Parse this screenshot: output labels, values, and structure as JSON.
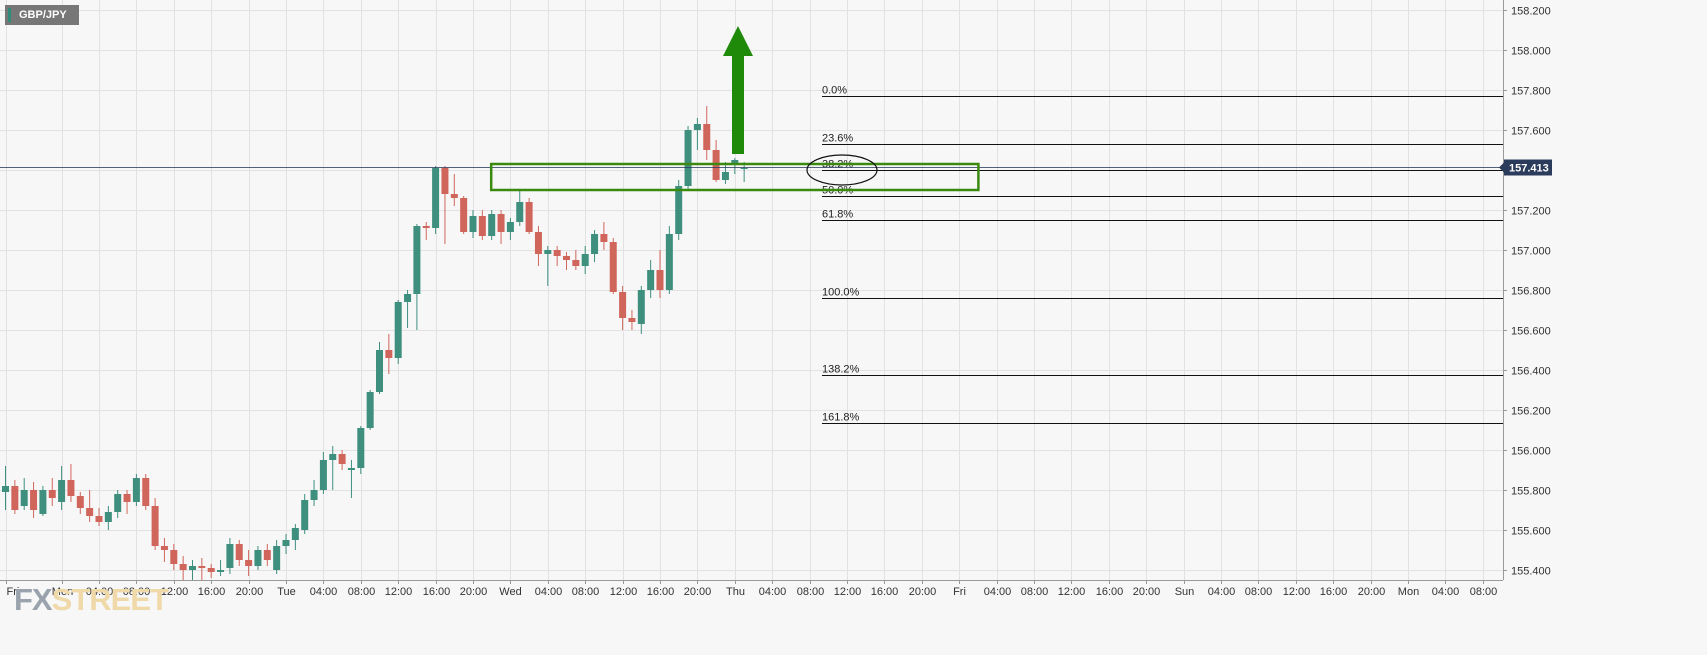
{
  "symbol": "GBP/JPY",
  "watermark": {
    "fx": "FX",
    "street": "STREET"
  },
  "colors": {
    "bull": "#3f8f7f",
    "bear": "#d0665b",
    "grid": "#e2e2e2",
    "fib_line": "#111111",
    "zone": "#3a8a0f",
    "arrow": "#1f8a0a",
    "price_label_bg": "#2b3b5c",
    "price_line": "#2b3b5c"
  },
  "chart_data": {
    "type": "candlestick",
    "title": "GBP/JPY",
    "ylim": [
      155.35,
      158.25
    ],
    "y_ticks": [
      "155.400",
      "155.600",
      "155.800",
      "156.000",
      "156.200",
      "156.400",
      "156.600",
      "156.800",
      "157.000",
      "157.200",
      "157.400",
      "157.600",
      "157.800",
      "158.000",
      "158.200"
    ],
    "x_ticks": [
      "Fri",
      "Mon",
      "04:00",
      "08:00",
      "12:00",
      "16:00",
      "20:00",
      "Tue",
      "04:00",
      "08:00",
      "12:00",
      "16:00",
      "20:00",
      "Wed",
      "04:00",
      "08:00",
      "12:00",
      "16:00",
      "20:00",
      "Thu",
      "04:00",
      "08:00",
      "12:00",
      "16:00",
      "20:00",
      "Fri",
      "04:00",
      "08:00",
      "12:00",
      "16:00",
      "20:00",
      "Sun",
      "04:00",
      "08:00",
      "12:00",
      "16:00",
      "20:00",
      "Mon",
      "04:00",
      "08:00"
    ],
    "x_tick_slot": [
      0,
      6,
      10,
      14,
      18,
      22,
      26,
      30,
      34,
      38,
      42,
      46,
      50,
      54,
      58,
      62,
      66,
      70,
      74,
      78,
      82,
      86,
      90,
      94,
      98,
      102,
      106,
      110,
      114,
      118,
      122,
      126,
      130,
      134,
      138,
      142,
      146,
      150,
      154,
      158
    ],
    "candles": [
      {
        "o": 155.79,
        "h": 155.92,
        "l": 155.7,
        "c": 155.82
      },
      {
        "o": 155.82,
        "h": 155.85,
        "l": 155.68,
        "c": 155.7
      },
      {
        "o": 155.72,
        "h": 155.86,
        "l": 155.7,
        "c": 155.8
      },
      {
        "o": 155.8,
        "h": 155.84,
        "l": 155.66,
        "c": 155.7
      },
      {
        "o": 155.68,
        "h": 155.82,
        "l": 155.67,
        "c": 155.8
      },
      {
        "o": 155.8,
        "h": 155.86,
        "l": 155.72,
        "c": 155.76
      },
      {
        "o": 155.74,
        "h": 155.92,
        "l": 155.7,
        "c": 155.85
      },
      {
        "o": 155.85,
        "h": 155.93,
        "l": 155.74,
        "c": 155.77
      },
      {
        "o": 155.77,
        "h": 155.79,
        "l": 155.68,
        "c": 155.71
      },
      {
        "o": 155.71,
        "h": 155.8,
        "l": 155.64,
        "c": 155.67
      },
      {
        "o": 155.67,
        "h": 155.71,
        "l": 155.62,
        "c": 155.64
      },
      {
        "o": 155.64,
        "h": 155.72,
        "l": 155.6,
        "c": 155.69
      },
      {
        "o": 155.69,
        "h": 155.8,
        "l": 155.66,
        "c": 155.78
      },
      {
        "o": 155.78,
        "h": 155.8,
        "l": 155.68,
        "c": 155.74
      },
      {
        "o": 155.74,
        "h": 155.88,
        "l": 155.72,
        "c": 155.86
      },
      {
        "o": 155.86,
        "h": 155.88,
        "l": 155.7,
        "c": 155.72
      },
      {
        "o": 155.72,
        "h": 155.76,
        "l": 155.5,
        "c": 155.52
      },
      {
        "o": 155.52,
        "h": 155.56,
        "l": 155.44,
        "c": 155.5
      },
      {
        "o": 155.5,
        "h": 155.53,
        "l": 155.4,
        "c": 155.43
      },
      {
        "o": 155.43,
        "h": 155.47,
        "l": 155.35,
        "c": 155.4
      },
      {
        "o": 155.4,
        "h": 155.45,
        "l": 155.35,
        "c": 155.42
      },
      {
        "o": 155.42,
        "h": 155.46,
        "l": 155.35,
        "c": 155.41
      },
      {
        "o": 155.41,
        "h": 155.43,
        "l": 155.36,
        "c": 155.39
      },
      {
        "o": 155.39,
        "h": 155.45,
        "l": 155.37,
        "c": 155.4
      },
      {
        "o": 155.41,
        "h": 155.56,
        "l": 155.38,
        "c": 155.53
      },
      {
        "o": 155.53,
        "h": 155.55,
        "l": 155.42,
        "c": 155.45
      },
      {
        "o": 155.45,
        "h": 155.5,
        "l": 155.37,
        "c": 155.42
      },
      {
        "o": 155.42,
        "h": 155.52,
        "l": 155.4,
        "c": 155.5
      },
      {
        "o": 155.5,
        "h": 155.53,
        "l": 155.42,
        "c": 155.45
      },
      {
        "o": 155.4,
        "h": 155.55,
        "l": 155.38,
        "c": 155.52
      },
      {
        "o": 155.52,
        "h": 155.58,
        "l": 155.48,
        "c": 155.55
      },
      {
        "o": 155.55,
        "h": 155.63,
        "l": 155.5,
        "c": 155.61
      },
      {
        "o": 155.6,
        "h": 155.78,
        "l": 155.58,
        "c": 155.75
      },
      {
        "o": 155.75,
        "h": 155.85,
        "l": 155.72,
        "c": 155.8
      },
      {
        "o": 155.8,
        "h": 155.99,
        "l": 155.78,
        "c": 155.95
      },
      {
        "o": 155.95,
        "h": 156.02,
        "l": 155.8,
        "c": 155.98
      },
      {
        "o": 155.98,
        "h": 156.0,
        "l": 155.9,
        "c": 155.93
      },
      {
        "o": 155.9,
        "h": 155.95,
        "l": 155.76,
        "c": 155.91
      },
      {
        "o": 155.91,
        "h": 156.12,
        "l": 155.88,
        "c": 156.11
      },
      {
        "o": 156.11,
        "h": 156.3,
        "l": 156.1,
        "c": 156.29
      },
      {
        "o": 156.29,
        "h": 156.54,
        "l": 156.28,
        "c": 156.5
      },
      {
        "o": 156.5,
        "h": 156.58,
        "l": 156.38,
        "c": 156.46
      },
      {
        "o": 156.46,
        "h": 156.75,
        "l": 156.43,
        "c": 156.74
      },
      {
        "o": 156.74,
        "h": 156.8,
        "l": 156.61,
        "c": 156.78
      },
      {
        "o": 156.78,
        "h": 157.13,
        "l": 156.6,
        "c": 157.12
      },
      {
        "o": 157.12,
        "h": 157.14,
        "l": 157.05,
        "c": 157.11
      },
      {
        "o": 157.11,
        "h": 157.42,
        "l": 157.08,
        "c": 157.41
      },
      {
        "o": 157.41,
        "h": 157.42,
        "l": 157.03,
        "c": 157.28
      },
      {
        "o": 157.28,
        "h": 157.38,
        "l": 157.22,
        "c": 157.26
      },
      {
        "o": 157.26,
        "h": 157.27,
        "l": 157.08,
        "c": 157.09
      },
      {
        "o": 157.09,
        "h": 157.2,
        "l": 157.06,
        "c": 157.17
      },
      {
        "o": 157.17,
        "h": 157.2,
        "l": 157.05,
        "c": 157.07
      },
      {
        "o": 157.07,
        "h": 157.2,
        "l": 157.05,
        "c": 157.18
      },
      {
        "o": 157.18,
        "h": 157.2,
        "l": 157.03,
        "c": 157.09
      },
      {
        "o": 157.09,
        "h": 157.16,
        "l": 157.05,
        "c": 157.14
      },
      {
        "o": 157.14,
        "h": 157.3,
        "l": 157.12,
        "c": 157.24
      },
      {
        "o": 157.24,
        "h": 157.26,
        "l": 157.08,
        "c": 157.09
      },
      {
        "o": 157.09,
        "h": 157.12,
        "l": 156.92,
        "c": 156.98
      },
      {
        "o": 156.98,
        "h": 157.02,
        "l": 156.82,
        "c": 157.0
      },
      {
        "o": 157.0,
        "h": 157.02,
        "l": 156.92,
        "c": 156.97
      },
      {
        "o": 156.97,
        "h": 156.99,
        "l": 156.9,
        "c": 156.95
      },
      {
        "o": 156.95,
        "h": 157.0,
        "l": 156.9,
        "c": 156.92
      },
      {
        "o": 156.92,
        "h": 157.02,
        "l": 156.88,
        "c": 156.98
      },
      {
        "o": 156.98,
        "h": 157.1,
        "l": 156.94,
        "c": 157.08
      },
      {
        "o": 157.08,
        "h": 157.14,
        "l": 157.0,
        "c": 157.04
      },
      {
        "o": 157.04,
        "h": 157.06,
        "l": 156.78,
        "c": 156.79
      },
      {
        "o": 156.79,
        "h": 156.82,
        "l": 156.6,
        "c": 156.66
      },
      {
        "o": 156.66,
        "h": 156.7,
        "l": 156.6,
        "c": 156.64
      },
      {
        "o": 156.63,
        "h": 156.82,
        "l": 156.58,
        "c": 156.8
      },
      {
        "o": 156.8,
        "h": 156.95,
        "l": 156.76,
        "c": 156.9
      },
      {
        "o": 156.9,
        "h": 157.0,
        "l": 156.76,
        "c": 156.8
      },
      {
        "o": 156.8,
        "h": 157.12,
        "l": 156.78,
        "c": 157.08
      },
      {
        "o": 157.08,
        "h": 157.35,
        "l": 157.05,
        "c": 157.32
      },
      {
        "o": 157.32,
        "h": 157.62,
        "l": 157.3,
        "c": 157.6
      },
      {
        "o": 157.6,
        "h": 157.66,
        "l": 157.5,
        "c": 157.63
      },
      {
        "o": 157.63,
        "h": 157.72,
        "l": 157.45,
        "c": 157.5
      },
      {
        "o": 157.5,
        "h": 157.55,
        "l": 157.34,
        "c": 157.35
      },
      {
        "o": 157.35,
        "h": 157.44,
        "l": 157.33,
        "c": 157.39
      },
      {
        "o": 157.43,
        "h": 157.46,
        "l": 157.38,
        "c": 157.45
      },
      {
        "o": 157.41,
        "h": 157.44,
        "l": 157.34,
        "c": 157.41
      }
    ],
    "fib_levels": [
      {
        "label": "0.0%",
        "value": 157.77
      },
      {
        "label": "23.6%",
        "value": 157.53
      },
      {
        "label": "38.2%",
        "value": 157.4
      },
      {
        "label": "50.0%",
        "value": 157.27
      },
      {
        "label": "61.8%",
        "value": 157.15
      },
      {
        "label": "100.0%",
        "value": 156.76
      },
      {
        "label": "138.2%",
        "value": 156.375
      },
      {
        "label": "161.8%",
        "value": 156.135
      }
    ],
    "current_price": "157.413",
    "current_price_value": 157.413,
    "zone": {
      "from_slot": 52,
      "to_slot": 104,
      "low": 157.3,
      "high": 157.43
    }
  }
}
